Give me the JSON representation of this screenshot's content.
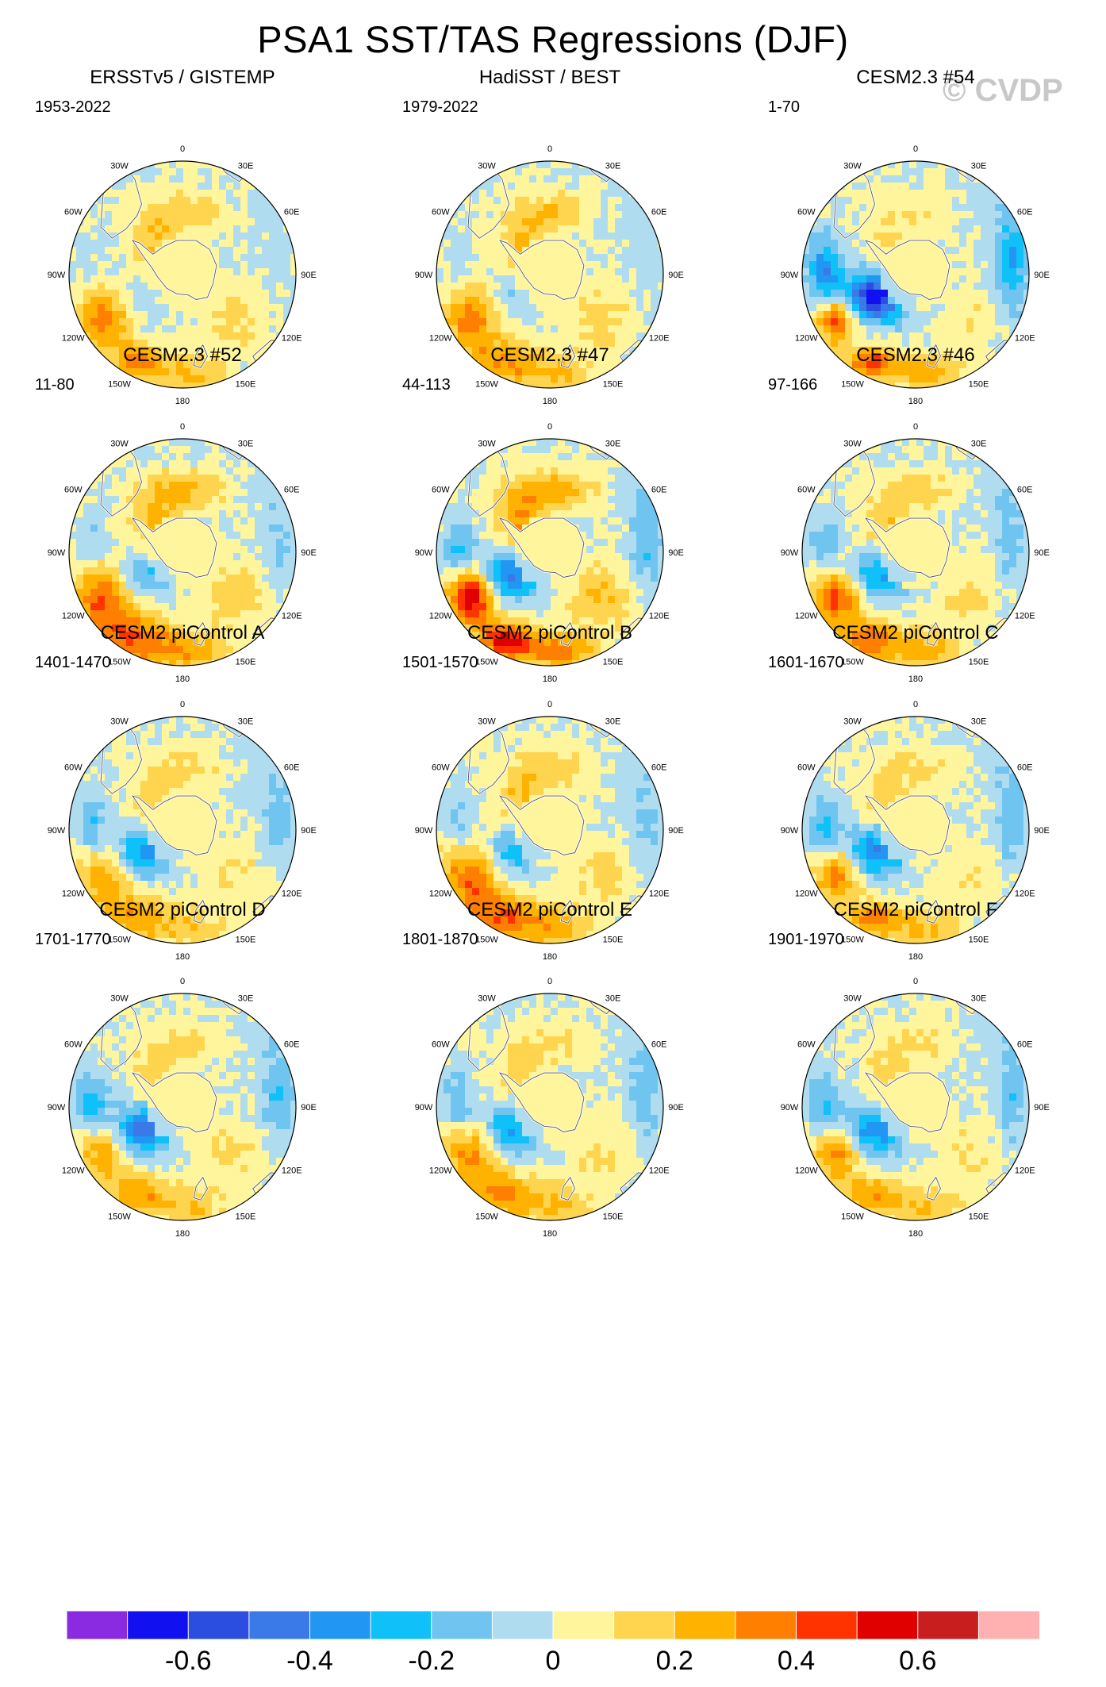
{
  "title": "PSA1 SST/TAS Regressions (DJF)",
  "watermark": "© CVDP",
  "chart_data": {
    "type": "heatmap",
    "projection": "south polar stereographic",
    "title": "PSA1 SST/TAS Regressions (DJF)",
    "longitude_labels": [
      "0",
      "30E",
      "60E",
      "90E",
      "120E",
      "150E",
      "180",
      "150W",
      "120W",
      "90W",
      "60W",
      "30W"
    ],
    "colorbar": {
      "levels": [
        -0.7,
        -0.6,
        -0.5,
        -0.4,
        -0.3,
        -0.2,
        -0.1,
        0,
        0.1,
        0.2,
        0.3,
        0.4,
        0.5,
        0.6,
        0.7
      ],
      "tick_labels": [
        "-0.6",
        "-0.4",
        "-0.2",
        "0",
        "0.2",
        "0.4",
        "0.6"
      ],
      "colors": [
        "#8a2be2",
        "#1010f0",
        "#2c4ee0",
        "#3a7ae8",
        "#2196f3",
        "#10c0f8",
        "#70c4f0",
        "#b0dcf0",
        "#fff59d",
        "#ffd54f",
        "#ffb300",
        "#ff7f00",
        "#ff3300",
        "#e00000",
        "#c81e1e",
        "#ffb0b0"
      ]
    },
    "panels": [
      {
        "title": "ERSSTv5 / GISTEMP",
        "years": "1953-2022",
        "amp_pacific": 0.36,
        "pos_ext": 0.9,
        "neg_amp": 0.09,
        "ring": 0.2,
        "seed": 1
      },
      {
        "title": "HadiSST / BEST",
        "years": "1979-2022",
        "amp_pacific": 0.36,
        "pos_ext": 1.0,
        "neg_amp": 0.12,
        "ring": 0.2,
        "seed": 2
      },
      {
        "title": "CESM2.3 #54",
        "years": "1-70",
        "amp_pacific": 0.5,
        "pos_ext": 0.7,
        "neg_amp": 0.66,
        "ring": 0.12,
        "seed": 3
      },
      {
        "title": "CESM2.3 #52",
        "years": "11-80",
        "amp_pacific": 0.44,
        "pos_ext": 1.1,
        "neg_amp": 0.27,
        "ring": 0.24,
        "seed": 4
      },
      {
        "title": "CESM2.3 #47",
        "years": "44-113",
        "amp_pacific": 0.66,
        "pos_ext": 0.8,
        "neg_amp": 0.42,
        "ring": 0.3,
        "seed": 5
      },
      {
        "title": "CESM2.3 #46",
        "years": "97-166",
        "amp_pacific": 0.46,
        "pos_ext": 0.9,
        "neg_amp": 0.33,
        "ring": 0.18,
        "seed": 6
      },
      {
        "title": "CESM2 piControl A",
        "years": "1401-1470",
        "amp_pacific": 0.32,
        "pos_ext": 1.0,
        "neg_amp": 0.36,
        "ring": 0.15,
        "seed": 7
      },
      {
        "title": "CESM2 piControl B",
        "years": "1501-1570",
        "amp_pacific": 0.42,
        "pos_ext": 1.1,
        "neg_amp": 0.3,
        "ring": 0.2,
        "seed": 8
      },
      {
        "title": "CESM2 piControl C",
        "years": "1601-1670",
        "amp_pacific": 0.4,
        "pos_ext": 0.8,
        "neg_amp": 0.4,
        "ring": 0.15,
        "seed": 9
      },
      {
        "title": "CESM2 piControl D",
        "years": "1701-1770",
        "amp_pacific": 0.34,
        "pos_ext": 0.9,
        "neg_amp": 0.48,
        "ring": 0.16,
        "seed": 10
      },
      {
        "title": "CESM2 piControl E",
        "years": "1801-1870",
        "amp_pacific": 0.36,
        "pos_ext": 1.0,
        "neg_amp": 0.36,
        "ring": 0.15,
        "seed": 11
      },
      {
        "title": "CESM2 piControl F",
        "years": "1901-1970",
        "amp_pacific": 0.38,
        "pos_ext": 0.8,
        "neg_amp": 0.4,
        "ring": 0.14,
        "seed": 12
      }
    ]
  }
}
